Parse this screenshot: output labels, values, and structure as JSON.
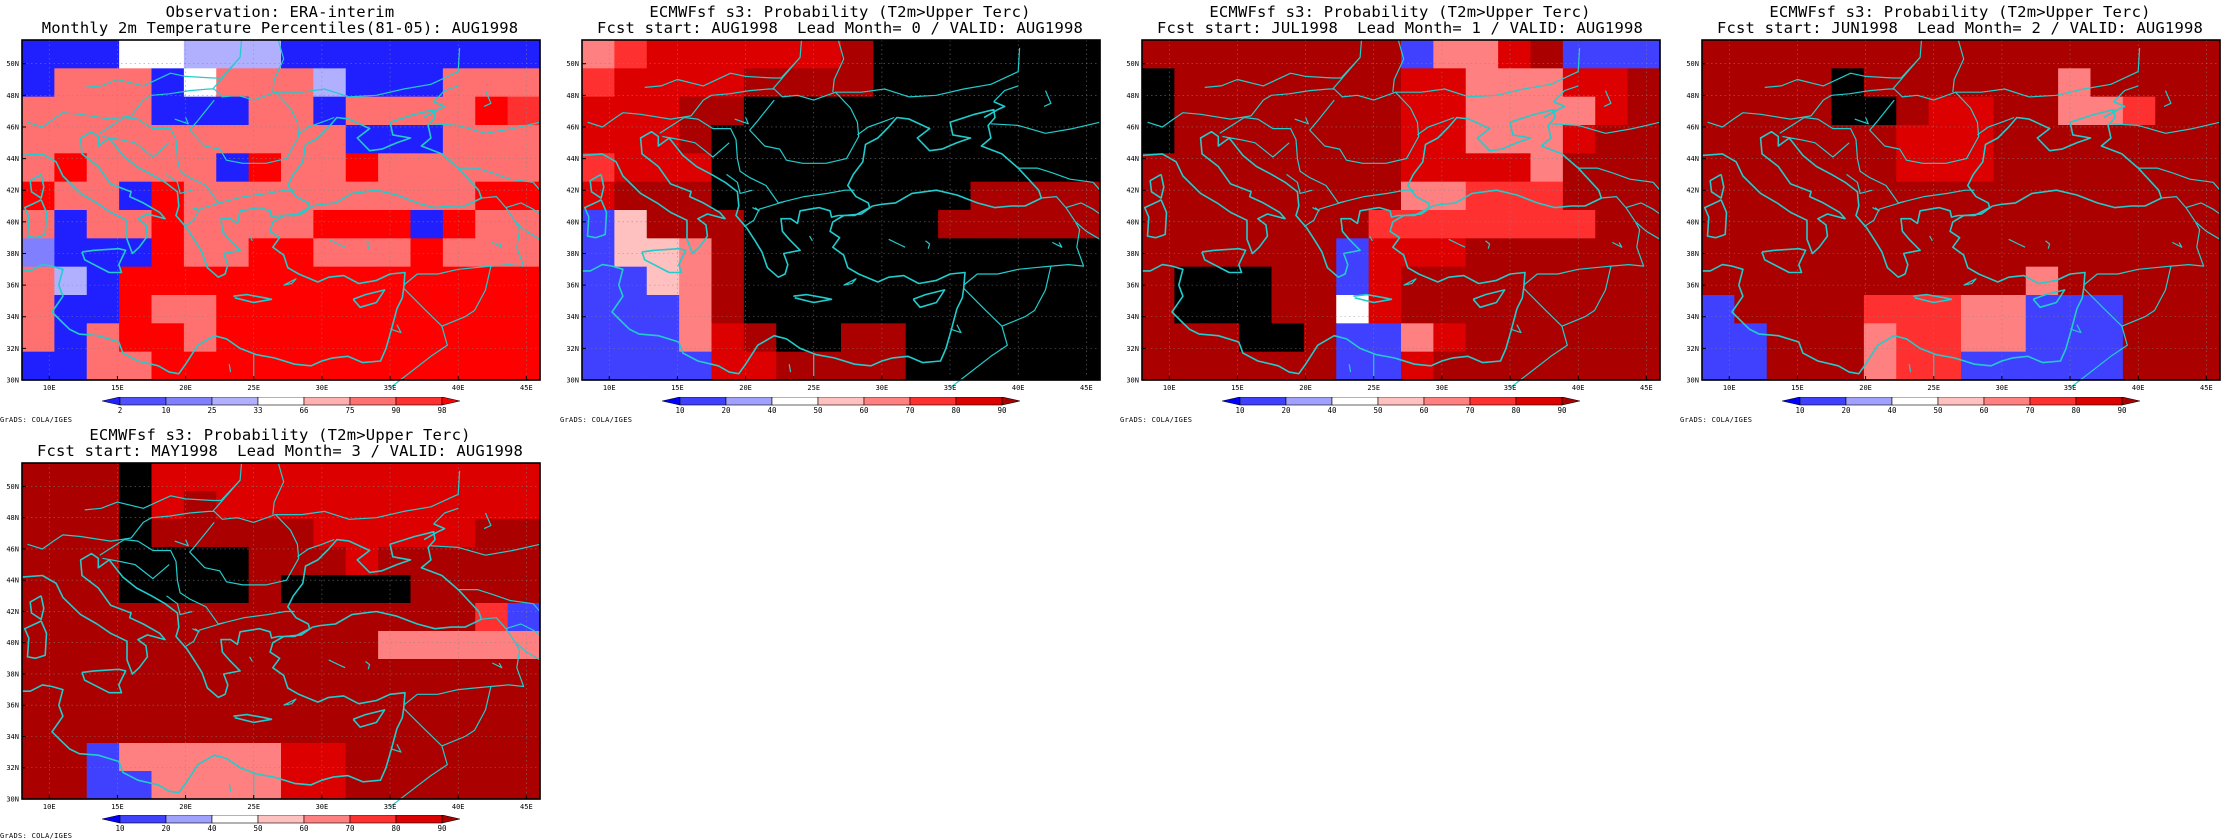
{
  "layout_order": [
    "obs",
    "lead0",
    "lead1",
    "lead2",
    "lead3"
  ],
  "panels": {
    "obs": {
      "title_line1": "Observation: ERA-interim",
      "title_line2": "Monthly 2m Temperature Percentiles(81-05): AUG1998",
      "colorbar_labels": [
        "2",
        "10",
        "25",
        "33",
        "66",
        "75",
        "90",
        "98"
      ],
      "colorbar_colors": [
        "#2020ff",
        "#5050ff",
        "#8080ff",
        "#b0b0ff",
        "#ffffff",
        "#ffb0b0",
        "#ff7070",
        "#ff3030",
        "#ff0000"
      ],
      "grid_codes": [
        "0004433300000000",
        "0666046663000666",
        "6666000660666687",
        "6666666666000666",
        "6866660866866666",
        "8660866666666688",
        "6066866668880866",
        "2000866886668666",
        "6308888888888888",
        "6008668888888888",
        "6068868888888888",
        "0066888888888888"
      ],
      "credit": "GrADS: COLA/IGES"
    },
    "lead0": {
      "title_line1": "ECMWFsf s3: Probability (T2m>Upper Terc)",
      "title_line2": "Fcst start: AUG1998  Lead Month= 0 / VALID: AUG1998",
      "colorbar_labels": [
        "10",
        "20",
        "40",
        "50",
        "60",
        "70",
        "80",
        "90"
      ],
      "colorbar_colors": [
        "#0000ff",
        "#4040ff",
        "#a0a0ff",
        "#ffffff",
        "#ffc0c0",
        "#ff8080",
        "#ff3030",
        "#dd0000",
        "#aa0000"
      ],
      "grid_codes": [
        "5677777789999999",
        "6777788889999999",
        "7778899999999999",
        "7778999999999999",
        "6777999999999999",
        "7888999999998888",
        "1488899999988888",
        "1445899999999999",
        "1145899999999999",
        "1115899999999999",
        "1115789988999999",
        "1111778888999999"
      ],
      "credit": "GrADS: COLA/IGES"
    },
    "lead1": {
      "title_line1": "ECMWFsf s3: Probability (T2m>Upper Terc)",
      "title_line2": "Fcst start: JUL1998  Lead Month= 1 / VALID: AUG1998",
      "colorbar_labels": [
        "10",
        "20",
        "40",
        "50",
        "60",
        "70",
        "80",
        "90"
      ],
      "colorbar_colors": [
        "#0000ff",
        "#4040ff",
        "#a0a0ff",
        "#ffffff",
        "#ffc0c0",
        "#ff8080",
        "#ff3030",
        "#dd0000",
        "#aa0000"
      ],
      "grid_codes": [
        "8888888815578111",
        "9888888877555778",
        "9888888877555578",
        "9888888877555788",
        "8888888877775888",
        "8888888855666888",
        "8888888666666688",
        "8888881777888888",
        "8999881788888888",
        "8999883788888888",
        "8889981157888888",
        "8888881178888888"
      ],
      "credit": "GrADS: COLA/IGES"
    },
    "lead2": {
      "title_line1": "ECMWFsf s3: Probability (T2m>Upper Terc)",
      "title_line2": "Fcst start: JUN1998  Lead Month= 2 / VALID: AUG1998",
      "colorbar_labels": [
        "10",
        "20",
        "40",
        "50",
        "60",
        "70",
        "80",
        "90"
      ],
      "colorbar_colors": [
        "#0000ff",
        "#4040ff",
        "#a0a0ff",
        "#ffffff",
        "#ffc0c0",
        "#ff8080",
        "#ff3030",
        "#dd0000",
        "#aa0000"
      ],
      "grid_codes": [
        "8888888888888888",
        "8888988888858888",
        "8888998778855688",
        "8888887778888888",
        "8888887778888888",
        "8888888888888888",
        "8888888888888888",
        "8888888888888888",
        "8888888888588888",
        "1888866655111888",
        "1188856655111888",
        "1188856611111888"
      ],
      "credit": "GrADS: COLA/IGES"
    },
    "lead3": {
      "title_line1": "ECMWFsf s3: Probability (T2m>Upper Terc)",
      "title_line2": "Fcst start: MAY1998  Lead Month= 3 / VALID: AUG1998",
      "colorbar_labels": [
        "10",
        "20",
        "40",
        "50",
        "60",
        "70",
        "80",
        "90"
      ],
      "colorbar_colors": [
        "#0000ff",
        "#4040ff",
        "#a0a0ff",
        "#ffffff",
        "#ffc0c0",
        "#ff8080",
        "#ff3030",
        "#dd0000",
        "#aa0000"
      ],
      "grid_codes": [
        "8889777777777777",
        "8889787777777777",
        "8889888887777788",
        "8889999888788888",
        "8889999899998888",
        "8888888888888861",
        "8888888888855555",
        "8888888888888888",
        "8888888888888888",
        "8888888888888888",
        "8815555577888888",
        "8811555577888888"
      ],
      "credit": "GrADS: COLA/IGES"
    }
  },
  "lat_labels": [
    "30N",
    "32N",
    "34N",
    "36N",
    "38N",
    "40N",
    "42N",
    "44N",
    "46N",
    "48N",
    "50N"
  ],
  "lon_labels": [
    "10E",
    "15E",
    "20E",
    "25E",
    "30E",
    "35E",
    "40E",
    "45E"
  ],
  "map_extent": {
    "lon_min": 8,
    "lon_max": 46,
    "lat_min": 30,
    "lat_max": 51.5
  },
  "coastline_color": "#22cccc",
  "grid_color": "#888888"
}
